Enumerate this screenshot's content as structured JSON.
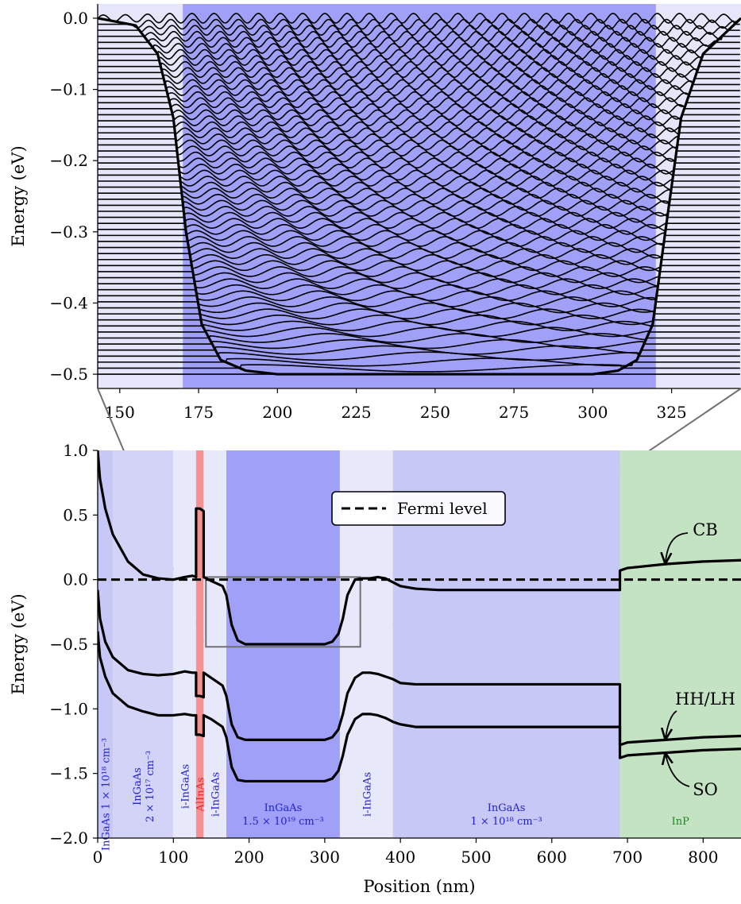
{
  "chart_data": [
    {
      "type": "line",
      "panel": "zoom",
      "xlabel": "",
      "ylabel": "Energy (eV)",
      "xlim": [
        143,
        347
      ],
      "ylim": [
        -0.52,
        0.02
      ],
      "xticks": [
        "150",
        "175",
        "200",
        "225",
        "250",
        "275",
        "300",
        "325"
      ],
      "yticks": [
        "0.0",
        "−0.1",
        "−0.2",
        "−0.3",
        "−0.4",
        "−0.5"
      ],
      "shaded_region": {
        "x": [
          170,
          320
        ],
        "color": "#a0a0f8"
      },
      "background_color": "#e6e6fb",
      "band_edge": {
        "x": [
          143,
          155,
          162,
          167,
          171,
          176,
          182,
          190,
          200,
          250,
          300,
          308,
          314,
          319,
          323,
          328,
          335,
          347
        ],
        "y": [
          0.0,
          -0.01,
          -0.05,
          -0.14,
          -0.3,
          -0.43,
          -0.48,
          -0.495,
          -0.5,
          -0.5,
          -0.5,
          -0.495,
          -0.48,
          -0.43,
          -0.3,
          -0.14,
          -0.05,
          0.0
        ]
      },
      "wavefunctions": {
        "count": 60,
        "lowest_level_eV": -0.5,
        "highest_level_eV": 0.0,
        "description": "quantized subband levels with oscillating envelopes inside the well"
      }
    },
    {
      "type": "line",
      "panel": "main",
      "xlabel": "Position (nm)",
      "ylabel": "Energy (eV)",
      "xlim": [
        0,
        850
      ],
      "ylim": [
        -2.0,
        1.0
      ],
      "xticks": [
        "0",
        "100",
        "200",
        "300",
        "400",
        "500",
        "600",
        "700",
        "800"
      ],
      "yticks": [
        "1.0",
        "0.5",
        "0.0",
        "−0.5",
        "−1.0",
        "−1.5",
        "−2.0"
      ],
      "legend": {
        "entries": [
          "Fermi level"
        ],
        "placement": "top-center"
      },
      "fermi_level_eV": 0.0,
      "regions": [
        {
          "x": [
            0,
            20
          ],
          "color": "#c8c8f6",
          "label_lines": [
            "InGaAs 1 × 10¹⁸ cm⁻³"
          ],
          "label_color": "#2222cc",
          "vertical": true
        },
        {
          "x": [
            20,
            100
          ],
          "color": "#d3d3f8",
          "label_lines": [
            "InGaAs",
            "2 × 10¹⁷ cm⁻³"
          ],
          "label_color": "#2222cc",
          "vertical": true
        },
        {
          "x": [
            100,
            130
          ],
          "color": "#e8e8fb",
          "label_lines": [
            "i-InGaAs"
          ],
          "label_color": "#2222cc",
          "vertical": true
        },
        {
          "x": [
            130,
            140
          ],
          "color": "#f79090",
          "label_lines": [
            "AlInAs"
          ],
          "label_color": "#ee2222",
          "vertical": true
        },
        {
          "x": [
            140,
            170
          ],
          "color": "#e8e8fb",
          "label_lines": [
            "i-InGaAs"
          ],
          "label_color": "#2222cc",
          "vertical": true
        },
        {
          "x": [
            170,
            320
          ],
          "color": "#a0a0f8",
          "label_lines": [
            "InGaAs",
            "1.5 × 10¹⁹ cm⁻³"
          ],
          "label_color": "#2222cc",
          "vertical": false
        },
        {
          "x": [
            320,
            390
          ],
          "color": "#e8e8fb",
          "label_lines": [
            "i-InGaAs"
          ],
          "label_color": "#2222cc",
          "vertical": true
        },
        {
          "x": [
            390,
            690
          ],
          "color": "#c8c8f6",
          "label_lines": [
            "InGaAs",
            "1 × 10¹⁸ cm⁻³"
          ],
          "label_color": "#2222cc",
          "vertical": false
        },
        {
          "x": [
            690,
            850
          ],
          "color": "#c3e3c3",
          "label_lines": [
            "InP"
          ],
          "label_color": "#228822",
          "vertical": false
        }
      ],
      "series": [
        {
          "name": "CB",
          "x": [
            0,
            3,
            10,
            20,
            40,
            60,
            80,
            100,
            115,
            125,
            130,
            130,
            135,
            140,
            140,
            150,
            165,
            170,
            177,
            185,
            195,
            300,
            310,
            318,
            324,
            330,
            340,
            350,
            360,
            370,
            380,
            390,
            400,
            420,
            450,
            500,
            600,
            690,
            690,
            700,
            750,
            800,
            850
          ],
          "y": [
            1.0,
            0.78,
            0.55,
            0.35,
            0.14,
            0.04,
            0.01,
            0.0,
            0.02,
            0.03,
            0.02,
            0.55,
            0.55,
            0.53,
            0.02,
            -0.01,
            -0.05,
            -0.12,
            -0.35,
            -0.47,
            -0.5,
            -0.5,
            -0.48,
            -0.42,
            -0.3,
            -0.12,
            0.0,
            0.01,
            0.01,
            0.02,
            0.01,
            -0.02,
            -0.05,
            -0.07,
            -0.08,
            -0.08,
            -0.08,
            -0.08,
            0.07,
            0.09,
            0.12,
            0.14,
            0.15
          ]
        },
        {
          "name": "HH/LH",
          "x": [
            0,
            3,
            10,
            20,
            40,
            60,
            80,
            100,
            115,
            125,
            130,
            130,
            135,
            140,
            140,
            150,
            165,
            170,
            177,
            185,
            195,
            300,
            310,
            318,
            324,
            330,
            340,
            350,
            360,
            370,
            380,
            390,
            400,
            420,
            450,
            500,
            600,
            690,
            690,
            700,
            750,
            800,
            850
          ],
          "y": [
            -0.08,
            -0.3,
            -0.48,
            -0.6,
            -0.7,
            -0.73,
            -0.74,
            -0.73,
            -0.71,
            -0.72,
            -0.72,
            -0.9,
            -0.9,
            -0.91,
            -0.72,
            -0.76,
            -0.82,
            -0.9,
            -1.12,
            -1.22,
            -1.24,
            -1.24,
            -1.22,
            -1.16,
            -1.04,
            -0.88,
            -0.76,
            -0.72,
            -0.72,
            -0.73,
            -0.75,
            -0.77,
            -0.8,
            -0.81,
            -0.81,
            -0.81,
            -0.81,
            -0.81,
            -1.28,
            -1.26,
            -1.24,
            -1.22,
            -1.21
          ]
        },
        {
          "name": "SO",
          "x": [
            0,
            3,
            10,
            20,
            40,
            60,
            80,
            100,
            115,
            125,
            130,
            130,
            135,
            140,
            140,
            150,
            165,
            170,
            177,
            185,
            195,
            300,
            310,
            318,
            324,
            330,
            340,
            350,
            360,
            370,
            380,
            390,
            400,
            420,
            450,
            500,
            600,
            690,
            690,
            700,
            750,
            800,
            850
          ],
          "y": [
            -0.4,
            -0.6,
            -0.75,
            -0.88,
            -0.98,
            -1.02,
            -1.05,
            -1.05,
            -1.04,
            -1.05,
            -1.05,
            -1.2,
            -1.2,
            -1.21,
            -1.05,
            -1.08,
            -1.14,
            -1.22,
            -1.45,
            -1.55,
            -1.56,
            -1.56,
            -1.54,
            -1.48,
            -1.36,
            -1.2,
            -1.08,
            -1.04,
            -1.04,
            -1.05,
            -1.07,
            -1.1,
            -1.12,
            -1.14,
            -1.14,
            -1.14,
            -1.14,
            -1.14,
            -1.38,
            -1.36,
            -1.34,
            -1.32,
            -1.31
          ]
        }
      ],
      "annotations": [
        {
          "text": "CB",
          "target_x": 750,
          "target_y": 0.12
        },
        {
          "text": "HH/LH",
          "target_x": 750,
          "target_y": -1.24
        },
        {
          "text": "SO",
          "target_x": 750,
          "target_y": -1.34
        }
      ],
      "zoom_box": {
        "x": [
          143,
          347
        ],
        "y": [
          -0.52,
          0.02
        ]
      }
    }
  ]
}
